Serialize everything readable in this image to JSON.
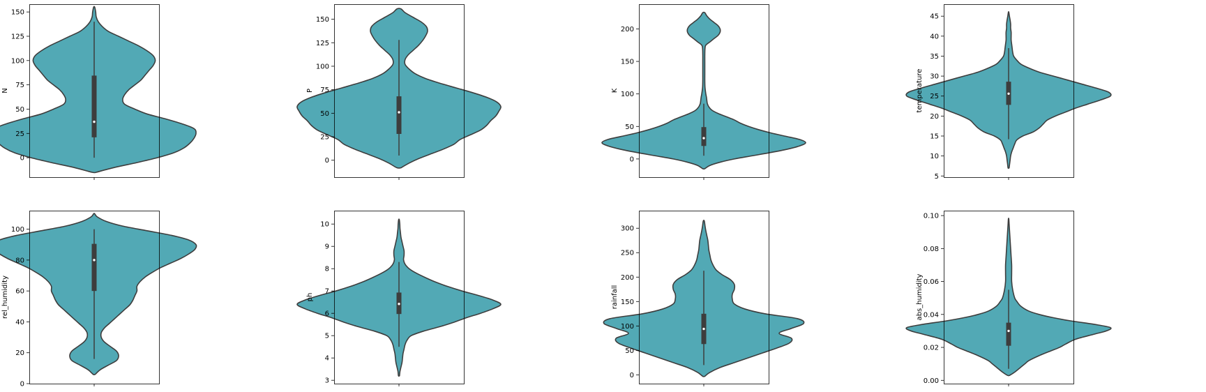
{
  "chart_data": [
    {
      "type": "violin",
      "ylabel": "N",
      "ylim": [
        -20,
        158
      ],
      "yticks": [
        0,
        25,
        50,
        75,
        100,
        125,
        150
      ],
      "ytick_labels": [
        "0",
        "25",
        "50",
        "75",
        "100",
        "125",
        "150"
      ],
      "color": "#52A9B5",
      "box": {
        "q1": 21,
        "median": 37,
        "q3": 84.5,
        "whisker_low": 0,
        "whisker_high": 140
      },
      "density": [
        [
          -15,
          0.02
        ],
        [
          -10,
          0.2
        ],
        [
          -5,
          0.42
        ],
        [
          0,
          0.62
        ],
        [
          5,
          0.78
        ],
        [
          10,
          0.88
        ],
        [
          15,
          0.94
        ],
        [
          20,
          0.98
        ],
        [
          25,
          1.0
        ],
        [
          30,
          0.98
        ],
        [
          35,
          0.86
        ],
        [
          40,
          0.7
        ],
        [
          45,
          0.52
        ],
        [
          50,
          0.4
        ],
        [
          55,
          0.3
        ],
        [
          60,
          0.28
        ],
        [
          65,
          0.3
        ],
        [
          70,
          0.34
        ],
        [
          75,
          0.4
        ],
        [
          80,
          0.46
        ],
        [
          85,
          0.5
        ],
        [
          90,
          0.54
        ],
        [
          95,
          0.58
        ],
        [
          100,
          0.6
        ],
        [
          105,
          0.58
        ],
        [
          110,
          0.52
        ],
        [
          115,
          0.44
        ],
        [
          120,
          0.34
        ],
        [
          125,
          0.24
        ],
        [
          130,
          0.14
        ],
        [
          135,
          0.08
        ],
        [
          140,
          0.04
        ],
        [
          145,
          0.02
        ],
        [
          150,
          0.015
        ],
        [
          155,
          0.005
        ]
      ]
    },
    {
      "type": "violin",
      "ylabel": "P",
      "ylim": [
        -18,
        166
      ],
      "yticks": [
        0,
        25,
        50,
        75,
        100,
        125,
        150
      ],
      "ytick_labels": [
        "0",
        "25",
        "50",
        "75",
        "100",
        "125",
        "150"
      ],
      "color": "#52A9B5",
      "box": {
        "q1": 28,
        "median": 51,
        "q3": 68,
        "whisker_low": 5,
        "whisker_high": 128
      },
      "density": [
        [
          -8,
          0.02
        ],
        [
          -3,
          0.1
        ],
        [
          2,
          0.2
        ],
        [
          7,
          0.32
        ],
        [
          12,
          0.44
        ],
        [
          17,
          0.54
        ],
        [
          22,
          0.6
        ],
        [
          27,
          0.7
        ],
        [
          32,
          0.8
        ],
        [
          37,
          0.86
        ],
        [
          42,
          0.9
        ],
        [
          47,
          0.95
        ],
        [
          52,
          0.98
        ],
        [
          57,
          1.0
        ],
        [
          62,
          0.96
        ],
        [
          67,
          0.86
        ],
        [
          72,
          0.72
        ],
        [
          77,
          0.56
        ],
        [
          82,
          0.4
        ],
        [
          87,
          0.26
        ],
        [
          92,
          0.16
        ],
        [
          97,
          0.1
        ],
        [
          102,
          0.06
        ],
        [
          107,
          0.06
        ],
        [
          112,
          0.09
        ],
        [
          117,
          0.14
        ],
        [
          122,
          0.19
        ],
        [
          127,
          0.23
        ],
        [
          132,
          0.26
        ],
        [
          137,
          0.28
        ],
        [
          142,
          0.27
        ],
        [
          147,
          0.22
        ],
        [
          152,
          0.14
        ],
        [
          157,
          0.06
        ],
        [
          161,
          0.02
        ]
      ]
    },
    {
      "type": "violin",
      "ylabel": "K",
      "ylim": [
        -28,
        238
      ],
      "yticks": [
        0,
        50,
        100,
        150,
        200
      ],
      "ytick_labels": [
        "0",
        "50",
        "100",
        "150",
        "200"
      ],
      "color": "#52A9B5",
      "box": {
        "q1": 20,
        "median": 32,
        "q3": 49,
        "whisker_low": 5,
        "whisker_high": 85
      },
      "density": [
        [
          -15,
          0.01
        ],
        [
          -10,
          0.06
        ],
        [
          -5,
          0.16
        ],
        [
          0,
          0.3
        ],
        [
          5,
          0.48
        ],
        [
          10,
          0.66
        ],
        [
          15,
          0.82
        ],
        [
          20,
          0.94
        ],
        [
          25,
          1.0
        ],
        [
          30,
          0.94
        ],
        [
          35,
          0.8
        ],
        [
          40,
          0.66
        ],
        [
          45,
          0.54
        ],
        [
          50,
          0.44
        ],
        [
          55,
          0.36
        ],
        [
          60,
          0.3
        ],
        [
          65,
          0.22
        ],
        [
          70,
          0.14
        ],
        [
          75,
          0.08
        ],
        [
          80,
          0.05
        ],
        [
          85,
          0.035
        ],
        [
          90,
          0.03
        ],
        [
          95,
          0.026
        ],
        [
          100,
          0.02
        ],
        [
          110,
          0.012
        ],
        [
          120,
          0.01
        ],
        [
          130,
          0.01
        ],
        [
          140,
          0.01
        ],
        [
          150,
          0.01
        ],
        [
          160,
          0.01
        ],
        [
          170,
          0.012
        ],
        [
          175,
          0.02
        ],
        [
          180,
          0.06
        ],
        [
          185,
          0.1
        ],
        [
          190,
          0.14
        ],
        [
          195,
          0.16
        ],
        [
          200,
          0.16
        ],
        [
          205,
          0.14
        ],
        [
          210,
          0.1
        ],
        [
          215,
          0.06
        ],
        [
          220,
          0.03
        ],
        [
          225,
          0.01
        ]
      ]
    },
    {
      "type": "violin",
      "ylabel": "temperature",
      "ylim": [
        4.7,
        48
      ],
      "yticks": [
        5,
        10,
        15,
        20,
        25,
        30,
        35,
        40,
        45
      ],
      "ytick_labels": [
        "5",
        "10",
        "15",
        "20",
        "25",
        "30",
        "35",
        "40",
        "45"
      ],
      "color": "#52A9B5",
      "box": {
        "q1": 22.8,
        "median": 25.6,
        "q3": 28.6,
        "whisker_low": 14.2,
        "whisker_high": 37
      },
      "density": [
        [
          7,
          0.005
        ],
        [
          8,
          0.01
        ],
        [
          9,
          0.015
        ],
        [
          10,
          0.02
        ],
        [
          11,
          0.03
        ],
        [
          12,
          0.045
        ],
        [
          13,
          0.06
        ],
        [
          14,
          0.08
        ],
        [
          15,
          0.14
        ],
        [
          16,
          0.24
        ],
        [
          17,
          0.3
        ],
        [
          18,
          0.34
        ],
        [
          19,
          0.38
        ],
        [
          20,
          0.46
        ],
        [
          21,
          0.56
        ],
        [
          22,
          0.66
        ],
        [
          23,
          0.78
        ],
        [
          24,
          0.9
        ],
        [
          25,
          1.0
        ],
        [
          26,
          0.98
        ],
        [
          27,
          0.86
        ],
        [
          28,
          0.72
        ],
        [
          29,
          0.58
        ],
        [
          30,
          0.44
        ],
        [
          31,
          0.3
        ],
        [
          32,
          0.2
        ],
        [
          33,
          0.12
        ],
        [
          34,
          0.08
        ],
        [
          35,
          0.05
        ],
        [
          36,
          0.04
        ],
        [
          37,
          0.035
        ],
        [
          38,
          0.03
        ],
        [
          39,
          0.025
        ],
        [
          40,
          0.025
        ],
        [
          41,
          0.025
        ],
        [
          42,
          0.02
        ],
        [
          43,
          0.02
        ],
        [
          44,
          0.015
        ],
        [
          45,
          0.008
        ],
        [
          46,
          0.002
        ]
      ]
    },
    {
      "type": "violin",
      "ylabel": "rel_humidity",
      "ylim": [
        0,
        112
      ],
      "yticks": [
        0,
        20,
        40,
        60,
        80,
        100
      ],
      "ytick_labels": [
        "0",
        "20",
        "40",
        "60",
        "80",
        "100"
      ],
      "color": "#52A9B5",
      "box": {
        "q1": 60,
        "median": 80,
        "q3": 90.5,
        "whisker_low": 16,
        "whisker_high": 100
      },
      "density": [
        [
          6,
          0.01
        ],
        [
          9,
          0.06
        ],
        [
          12,
          0.14
        ],
        [
          15,
          0.22
        ],
        [
          18,
          0.24
        ],
        [
          21,
          0.22
        ],
        [
          24,
          0.16
        ],
        [
          27,
          0.1
        ],
        [
          30,
          0.07
        ],
        [
          33,
          0.07
        ],
        [
          36,
          0.1
        ],
        [
          39,
          0.15
        ],
        [
          42,
          0.2
        ],
        [
          45,
          0.25
        ],
        [
          48,
          0.3
        ],
        [
          51,
          0.35
        ],
        [
          54,
          0.38
        ],
        [
          57,
          0.4
        ],
        [
          60,
          0.42
        ],
        [
          63,
          0.42
        ],
        [
          66,
          0.45
        ],
        [
          69,
          0.5
        ],
        [
          72,
          0.57
        ],
        [
          75,
          0.65
        ],
        [
          78,
          0.75
        ],
        [
          81,
          0.85
        ],
        [
          84,
          0.93
        ],
        [
          87,
          0.99
        ],
        [
          90,
          1.0
        ],
        [
          93,
          0.93
        ],
        [
          96,
          0.76
        ],
        [
          99,
          0.52
        ],
        [
          102,
          0.28
        ],
        [
          105,
          0.12
        ],
        [
          108,
          0.03
        ],
        [
          110,
          0.005
        ]
      ]
    },
    {
      "type": "violin",
      "ylabel": "ph",
      "ylim": [
        2.85,
        10.6
      ],
      "yticks": [
        3,
        4,
        5,
        6,
        7,
        8,
        9,
        10
      ],
      "ytick_labels": [
        "3",
        "4",
        "5",
        "6",
        "7",
        "8",
        "9",
        "10"
      ],
      "color": "#52A9B5",
      "box": {
        "q1": 5.97,
        "median": 6.42,
        "q3": 6.93,
        "whisker_low": 4.5,
        "whisker_high": 8.3
      },
      "density": [
        [
          3.2,
          0.005
        ],
        [
          3.4,
          0.01
        ],
        [
          3.6,
          0.02
        ],
        [
          3.8,
          0.03
        ],
        [
          4.0,
          0.035
        ],
        [
          4.2,
          0.04
        ],
        [
          4.4,
          0.05
        ],
        [
          4.6,
          0.06
        ],
        [
          4.8,
          0.08
        ],
        [
          5.0,
          0.12
        ],
        [
          5.2,
          0.24
        ],
        [
          5.4,
          0.4
        ],
        [
          5.6,
          0.54
        ],
        [
          5.8,
          0.66
        ],
        [
          6.0,
          0.8
        ],
        [
          6.2,
          0.92
        ],
        [
          6.4,
          1.0
        ],
        [
          6.6,
          0.92
        ],
        [
          6.8,
          0.78
        ],
        [
          7.0,
          0.62
        ],
        [
          7.2,
          0.48
        ],
        [
          7.4,
          0.36
        ],
        [
          7.6,
          0.26
        ],
        [
          7.8,
          0.17
        ],
        [
          8.0,
          0.1
        ],
        [
          8.2,
          0.06
        ],
        [
          8.4,
          0.045
        ],
        [
          8.6,
          0.05
        ],
        [
          8.8,
          0.05
        ],
        [
          9.0,
          0.04
        ],
        [
          9.2,
          0.03
        ],
        [
          9.4,
          0.02
        ],
        [
          9.6,
          0.015
        ],
        [
          9.8,
          0.01
        ],
        [
          10.0,
          0.008
        ],
        [
          10.2,
          0.003
        ]
      ]
    },
    {
      "type": "violin",
      "ylabel": "rainfall",
      "ylim": [
        -18,
        336
      ],
      "yticks": [
        0,
        50,
        100,
        150,
        200,
        250,
        300
      ],
      "ytick_labels": [
        "0",
        "50",
        "100",
        "150",
        "200",
        "250",
        "300"
      ],
      "color": "#52A9B5",
      "box": {
        "q1": 63,
        "median": 94,
        "q3": 125,
        "whisker_low": 20,
        "whisker_high": 213
      },
      "density": [
        [
          -3,
          0.01
        ],
        [
          5,
          0.06
        ],
        [
          15,
          0.16
        ],
        [
          25,
          0.3
        ],
        [
          35,
          0.44
        ],
        [
          45,
          0.58
        ],
        [
          55,
          0.72
        ],
        [
          65,
          0.84
        ],
        [
          75,
          0.86
        ],
        [
          85,
          0.74
        ],
        [
          95,
          0.86
        ],
        [
          105,
          0.98
        ],
        [
          115,
          0.92
        ],
        [
          125,
          0.6
        ],
        [
          135,
          0.4
        ],
        [
          145,
          0.3
        ],
        [
          155,
          0.28
        ],
        [
          165,
          0.28
        ],
        [
          175,
          0.3
        ],
        [
          185,
          0.3
        ],
        [
          195,
          0.26
        ],
        [
          205,
          0.18
        ],
        [
          215,
          0.12
        ],
        [
          225,
          0.09
        ],
        [
          235,
          0.07
        ],
        [
          245,
          0.06
        ],
        [
          255,
          0.05
        ],
        [
          265,
          0.045
        ],
        [
          275,
          0.04
        ],
        [
          285,
          0.03
        ],
        [
          295,
          0.02
        ],
        [
          305,
          0.012
        ],
        [
          315,
          0.005
        ]
      ]
    },
    {
      "type": "violin",
      "ylabel": "abs_humidity",
      "ylim": [
        -0.002,
        0.103
      ],
      "yticks": [
        0.0,
        0.02,
        0.04,
        0.06,
        0.08,
        0.1
      ],
      "ytick_labels": [
        "0.00",
        "0.02",
        "0.04",
        "0.06",
        "0.08",
        "0.10"
      ],
      "color": "#52A9B5",
      "box": {
        "q1": 0.021,
        "median": 0.03,
        "q3": 0.035,
        "whisker_low": 0.007,
        "whisker_high": 0.055
      },
      "density": [
        [
          0.003,
          0.01
        ],
        [
          0.005,
          0.06
        ],
        [
          0.008,
          0.12
        ],
        [
          0.01,
          0.16
        ],
        [
          0.012,
          0.2
        ],
        [
          0.015,
          0.3
        ],
        [
          0.018,
          0.42
        ],
        [
          0.02,
          0.5
        ],
        [
          0.022,
          0.56
        ],
        [
          0.025,
          0.66
        ],
        [
          0.028,
          0.84
        ],
        [
          0.03,
          0.96
        ],
        [
          0.032,
          1.0
        ],
        [
          0.034,
          0.84
        ],
        [
          0.036,
          0.62
        ],
        [
          0.038,
          0.44
        ],
        [
          0.04,
          0.3
        ],
        [
          0.042,
          0.2
        ],
        [
          0.045,
          0.12
        ],
        [
          0.048,
          0.08
        ],
        [
          0.05,
          0.06
        ],
        [
          0.055,
          0.04
        ],
        [
          0.06,
          0.03
        ],
        [
          0.065,
          0.03
        ],
        [
          0.07,
          0.03
        ],
        [
          0.075,
          0.025
        ],
        [
          0.08,
          0.02
        ],
        [
          0.085,
          0.015
        ],
        [
          0.09,
          0.01
        ],
        [
          0.095,
          0.005
        ],
        [
          0.098,
          0.002
        ]
      ]
    }
  ]
}
